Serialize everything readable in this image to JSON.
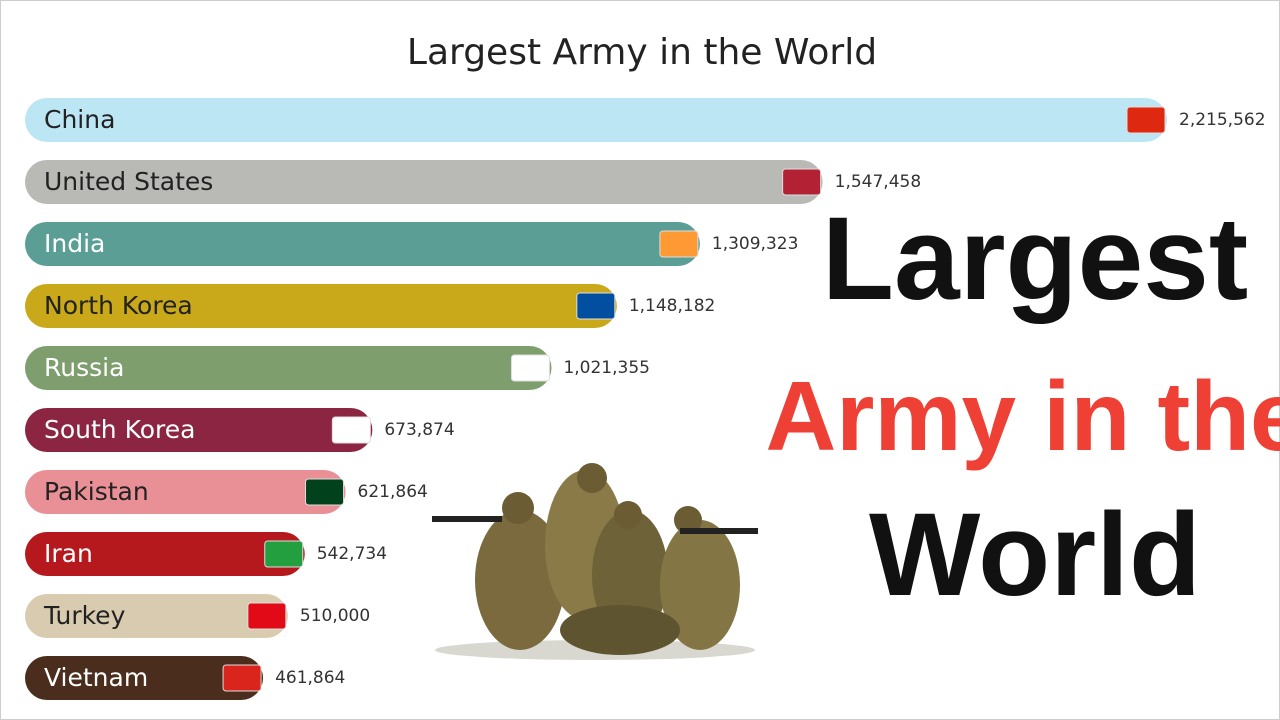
{
  "chart_data": {
    "type": "bar",
    "orientation": "horizontal",
    "title": "Largest Army in the World",
    "categories": [
      "China",
      "United States",
      "India",
      "North Korea",
      "Russia",
      "South Korea",
      "Pakistan",
      "Iran",
      "Turkey",
      "Vietnam"
    ],
    "values": [
      2215562,
      1547458,
      1309323,
      1148182,
      1021355,
      673874,
      621864,
      542734,
      510000,
      461864
    ],
    "value_labels": [
      "2,215,562",
      "1,547,458",
      "1,309,323",
      "1,148,182",
      "1,021,355",
      "673,874",
      "621,864",
      "542,734",
      "510,000",
      "461,864"
    ],
    "colors": [
      "#bde6f4",
      "#b9b9b6",
      "#5a9e96",
      "#c9a91a",
      "#7e9e6e",
      "#8c2541",
      "#e98f96",
      "#b5181d",
      "#d9cbb0",
      "#4a2d1c"
    ],
    "overlay": {
      "lines": [
        {
          "text": "Largest",
          "color": "#111111"
        },
        {
          "text": "Army in the",
          "color": "#ee4035"
        },
        {
          "text": "World",
          "color": "#111111"
        }
      ]
    }
  }
}
